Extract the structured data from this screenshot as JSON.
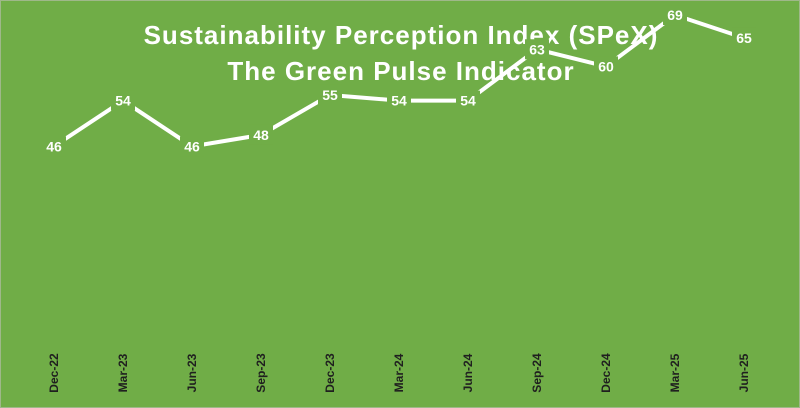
{
  "colors": {
    "background": "#70ad47",
    "line": "#ffffff",
    "drop_line": "#ffffff",
    "label_text": "#ffffff",
    "tick_text": "#1f1f1f"
  },
  "chart_data": {
    "type": "line",
    "title": "Sustainability Perception Index (SPeX)",
    "subtitle": "The Green Pulse Indicator",
    "categories": [
      "Dec-22",
      "Mar-23",
      "Jun-23",
      "Sep-23",
      "Dec-23",
      "Mar-24",
      "Jun-24",
      "Sep-24",
      "Dec-24",
      "Mar-25",
      "Jun-25"
    ],
    "values": [
      46,
      54,
      46,
      48,
      55,
      54,
      54,
      63,
      60,
      69,
      65
    ],
    "xlabel": "",
    "ylabel": "",
    "ylim": [
      0,
      80
    ],
    "grid": false,
    "legend": "none",
    "data_labels": true,
    "drop_lines": true
  }
}
